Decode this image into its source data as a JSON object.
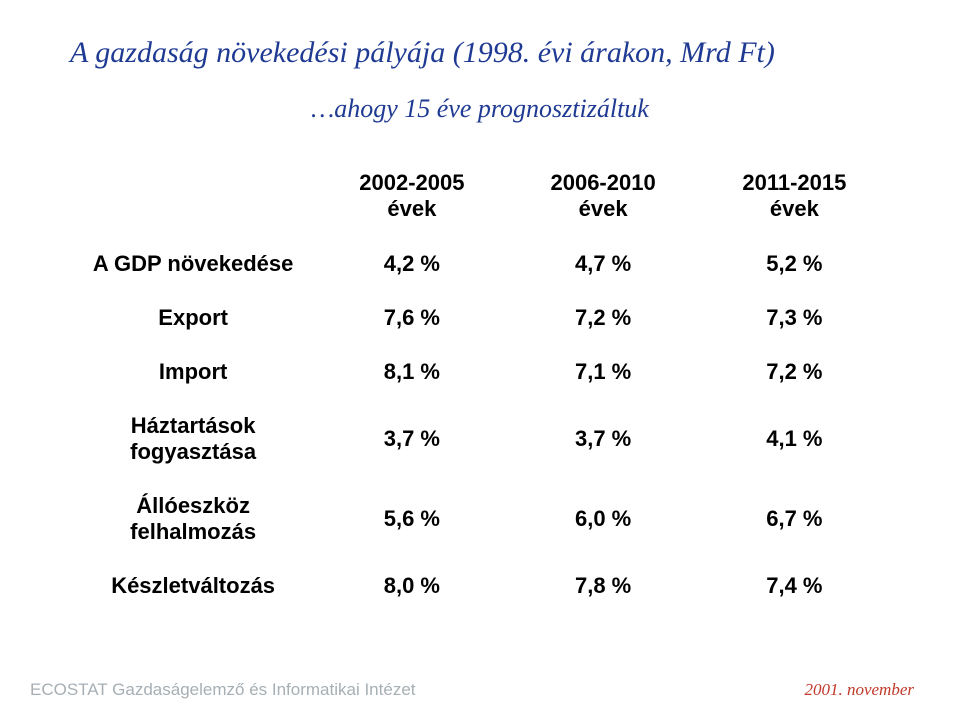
{
  "title": "A gazdaság növekedési pályája  (1998. évi árakon, Mrd Ft)",
  "subtitle": "…ahogy 15 éve prognosztizáltuk",
  "table": {
    "columns": [
      {
        "line1": "2002-2005",
        "line2": "évek"
      },
      {
        "line1": "2006-2010",
        "line2": "évek"
      },
      {
        "line1": "2011-2015",
        "line2": "évek"
      }
    ],
    "rows": [
      {
        "label_line1": "A GDP növekedése",
        "label_line2": "",
        "values": [
          "4,2 %",
          "4,7 %",
          "5,2 %"
        ]
      },
      {
        "label_line1": "Export",
        "label_line2": "",
        "values": [
          "7,6 %",
          "7,2 %",
          "7,3 %"
        ]
      },
      {
        "label_line1": "Import",
        "label_line2": "",
        "values": [
          "8,1 %",
          "7,1 %",
          "7,2 %"
        ]
      },
      {
        "label_line1": "Háztartások",
        "label_line2": "fogyasztása",
        "values": [
          "3,7 %",
          "3,7 %",
          "4,1 %"
        ]
      },
      {
        "label_line1": "Állóeszköz",
        "label_line2": "felhalmozás",
        "values": [
          "5,6 %",
          "6,0 %",
          "6,7 %"
        ]
      },
      {
        "label_line1": "Készletváltozás",
        "label_line2": "",
        "values": [
          "8,0 %",
          "7,8 %",
          "7,4 %"
        ]
      }
    ]
  },
  "footer_left": "ECOSTAT Gazdaságelemző és Informatikai Intézet",
  "footer_right": "2001. november",
  "colors": {
    "title_color": "#1f3a93",
    "text_color": "#000000",
    "footer_left_color": "#a6afb4",
    "footer_right_color": "#c0392b",
    "background": "#ffffff"
  },
  "typography": {
    "title_font": "Georgia serif italic",
    "title_size_pt": 22,
    "subtitle_size_pt": 20,
    "table_font": "Arial",
    "table_size_pt": 17,
    "footer_size_pt": 13
  }
}
